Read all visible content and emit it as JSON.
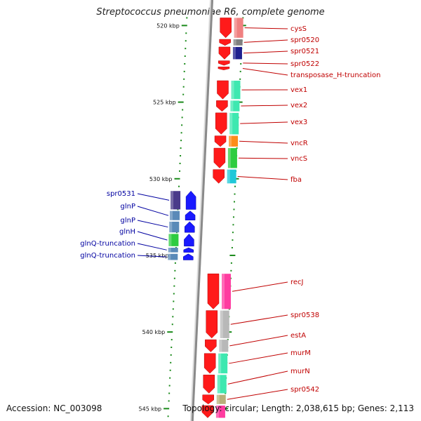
{
  "title": "Streptococcus pneumoniae R6, complete genome",
  "accession_text": "Accession: NC_003098",
  "summary_text": "Topology: circular; Length: 2,038,615 bp; Genes: 2,113",
  "colors": {
    "backbone": "#8a8a8a",
    "forward_gene": "#ff1a1a",
    "reverse_gene": "#1a1aff",
    "forward_label": "#c00000",
    "reverse_label": "#0000a0",
    "tick": "#1a8a1a"
  },
  "scale": {
    "unit": "kbp",
    "labels": [
      {
        "kbp": 520,
        "text": "520 kbp"
      },
      {
        "kbp": 525,
        "text": "525 kbp"
      },
      {
        "kbp": 530,
        "text": "530 kbp"
      },
      {
        "kbp": 535,
        "text": "535 kbp"
      },
      {
        "kbp": 540,
        "text": "540 kbp"
      },
      {
        "kbp": 545,
        "text": "545 kbp"
      }
    ]
  },
  "genes_forward": [
    {
      "name": "cysS",
      "start_kbp": 519.5,
      "end_kbp": 520.8,
      "cog_color": "#f08080"
    },
    {
      "name": "spr0520",
      "start_kbp": 520.9,
      "end_kbp": 521.3,
      "cog_color": "#7f7f7f"
    },
    {
      "name": "spr0521",
      "start_kbp": 521.4,
      "end_kbp": 522.2,
      "cog_color": "#20208f"
    },
    {
      "name": "spr0522",
      "start_kbp": 522.3,
      "end_kbp": 522.6,
      "cog_color": null
    },
    {
      "name": "transposase_H-truncation",
      "start_kbp": 522.7,
      "end_kbp": 522.9,
      "cog_color": null
    },
    {
      "name": "vex1",
      "start_kbp": 523.6,
      "end_kbp": 524.8,
      "cog_color": "#3ee8b0"
    },
    {
      "name": "vex2",
      "start_kbp": 524.9,
      "end_kbp": 525.6,
      "cog_color": "#3ee8b0"
    },
    {
      "name": "vex3",
      "start_kbp": 525.7,
      "end_kbp": 527.1,
      "cog_color": "#3ee8b0"
    },
    {
      "name": "vncR",
      "start_kbp": 527.2,
      "end_kbp": 527.9,
      "cog_color": "#ff8c1a"
    },
    {
      "name": "vncS",
      "start_kbp": 528.0,
      "end_kbp": 529.3,
      "cog_color": "#2ecc40"
    },
    {
      "name": "fba",
      "start_kbp": 529.4,
      "end_kbp": 530.3,
      "cog_color": "#20c8d8"
    },
    {
      "name": "recJ",
      "start_kbp": 536.2,
      "end_kbp": 538.5,
      "cog_color": "#ff3ca0"
    },
    {
      "name": "spr0538",
      "start_kbp": 538.6,
      "end_kbp": 540.4,
      "cog_color": "#b8b8b8"
    },
    {
      "name": "estA",
      "start_kbp": 540.5,
      "end_kbp": 541.3,
      "cog_color": "#b8b8b8"
    },
    {
      "name": "murM",
      "start_kbp": 541.4,
      "end_kbp": 542.7,
      "cog_color": "#3ee8b0"
    },
    {
      "name": "murN",
      "start_kbp": 542.8,
      "end_kbp": 544.0,
      "cog_color": "#3ee8b0"
    },
    {
      "name": "spr0542",
      "start_kbp": 544.1,
      "end_kbp": 544.7,
      "cog_color": "#b8b07a"
    },
    {
      "name": "",
      "start_kbp": 544.8,
      "end_kbp": 545.6,
      "cog_color": "#ff3ca0"
    }
  ],
  "genes_reverse": [
    {
      "name": "spr0531",
      "start_kbp": 530.8,
      "end_kbp": 532.0,
      "cog_color": "#4a3a8a"
    },
    {
      "name": "glnP",
      "start_kbp": 532.1,
      "end_kbp": 532.7,
      "cog_color": "#5a8ab8"
    },
    {
      "name": "glnP",
      "start_kbp": 532.8,
      "end_kbp": 533.5,
      "cog_color": "#5a8ab8"
    },
    {
      "name": "glnH",
      "start_kbp": 533.6,
      "end_kbp": 534.4,
      "cog_color": "#2ecc40"
    },
    {
      "name": "glnQ-truncation",
      "start_kbp": 534.5,
      "end_kbp": 534.8,
      "cog_color": "#5a8ab8"
    },
    {
      "name": "glnQ-truncation",
      "start_kbp": 534.9,
      "end_kbp": 535.3,
      "cog_color": "#5a8ab8"
    }
  ]
}
